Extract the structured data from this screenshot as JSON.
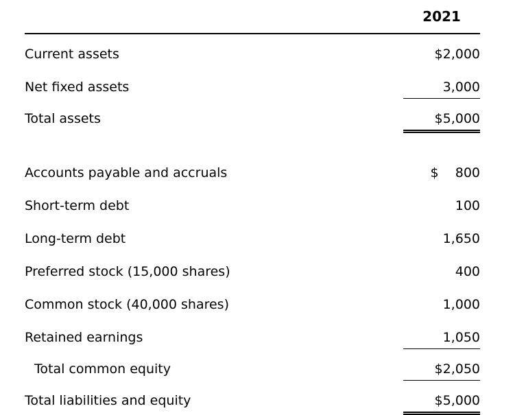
{
  "table": {
    "header": {
      "year": "2021"
    },
    "rows": [
      {
        "label": "Current assets",
        "value": "$2,000",
        "underline": "none",
        "indent": false
      },
      {
        "label": "Net fixed assets",
        "value": "3,000",
        "underline": "single",
        "indent": false
      },
      {
        "label": "Total assets",
        "value": "$5,000",
        "underline": "double",
        "indent": false
      },
      {
        "spacer": true
      },
      {
        "label": "Accounts payable and accruals",
        "value": "$    800",
        "underline": "none",
        "indent": false
      },
      {
        "label": "Short-term debt",
        "value": "100",
        "underline": "none",
        "indent": false
      },
      {
        "label": "Long-term debt",
        "value": "1,650",
        "underline": "none",
        "indent": false
      },
      {
        "label": "Preferred stock (15,000 shares)",
        "value": "400",
        "underline": "none",
        "indent": false
      },
      {
        "label": "Common stock (40,000 shares)",
        "value": "1,000",
        "underline": "none",
        "indent": false
      },
      {
        "label": "Retained earnings",
        "value": "1,050",
        "underline": "single",
        "indent": false
      },
      {
        "label": "Total common equity",
        "value": "$2,050",
        "underline": "single",
        "indent": true
      },
      {
        "label": "Total liabilities and equity",
        "value": "$5,000",
        "underline": "double",
        "indent": false
      }
    ]
  }
}
